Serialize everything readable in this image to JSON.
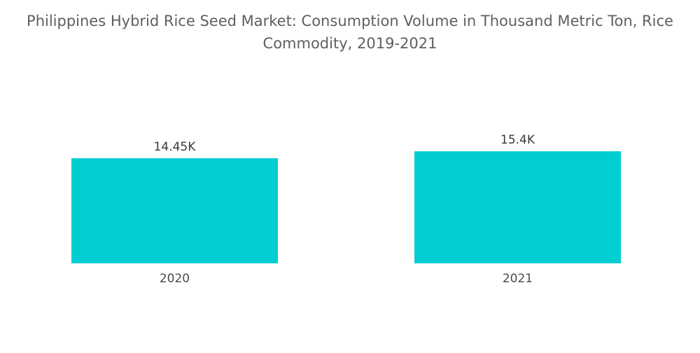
{
  "chart_data": {
    "type": "bar",
    "title": "Philippines Hybrid Rice Seed Market: Consumption Volume in Thousand Metric Ton, Rice Commodity, 2019-2021",
    "categories": [
      "2020",
      "2021"
    ],
    "values": [
      14.45,
      15.4
    ],
    "data_labels": [
      "14.45K",
      "15.4K"
    ],
    "xlabel": "",
    "ylabel": "",
    "ylim": [
      0,
      15.4
    ],
    "grid": false,
    "legend": "none",
    "bar_color": "#00ced1"
  }
}
